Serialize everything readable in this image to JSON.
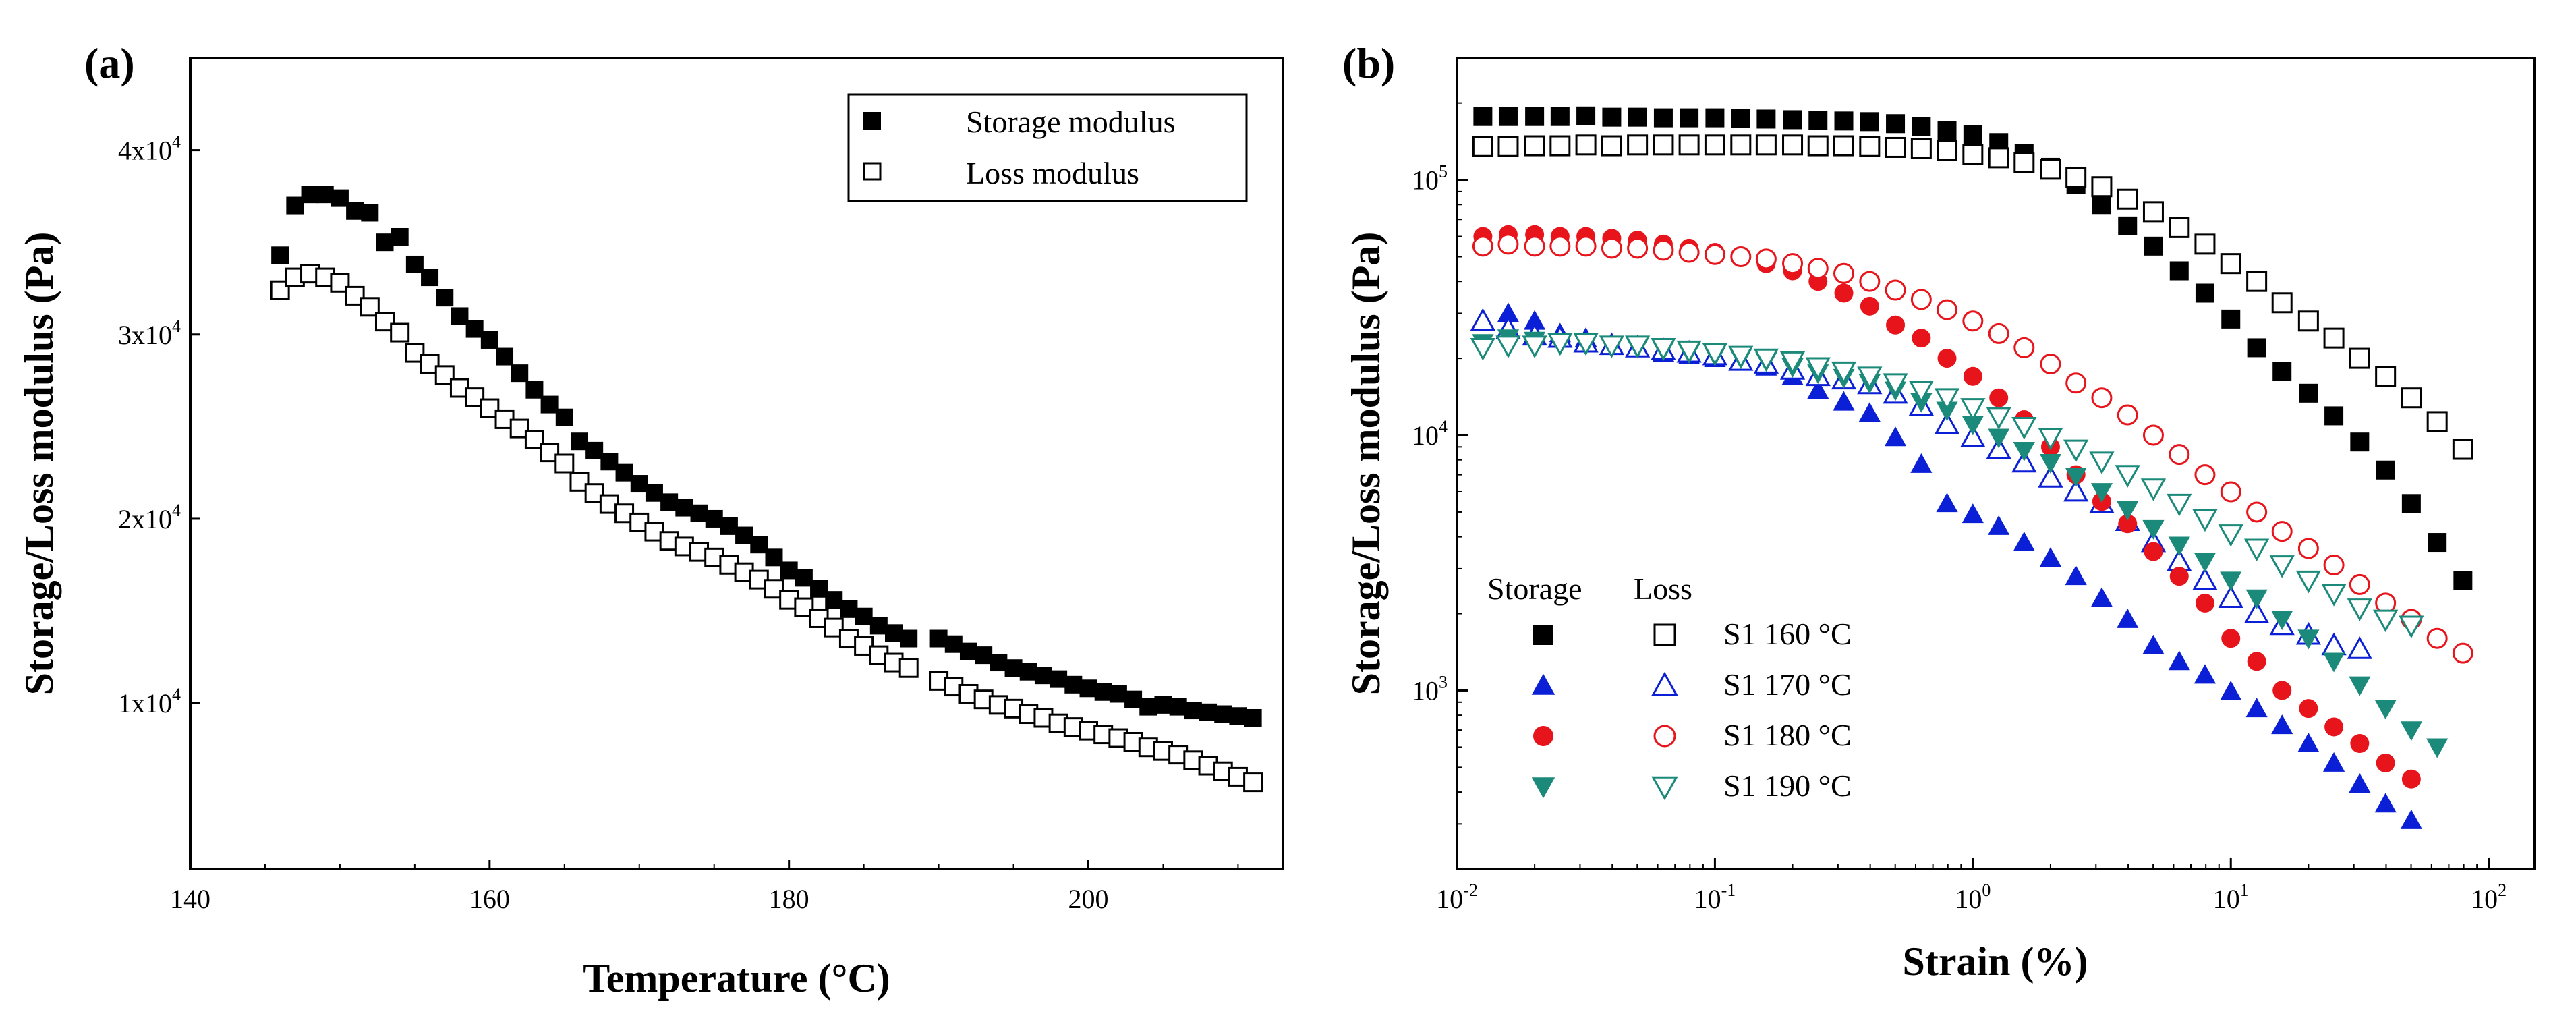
{
  "colors": {
    "black": "#000000",
    "blue": "#0a1fd6",
    "red": "#e8141b",
    "teal": "#1b8a7a"
  },
  "panels": {
    "a": {
      "label": "(a)"
    },
    "b": {
      "label": "(b)"
    }
  },
  "chart_data": [
    {
      "id": "a",
      "type": "scatter",
      "title": "",
      "xlabel": "Temperature (°C)",
      "ylabel": "Storage/Loss modulus (Pa)",
      "xlim": [
        140,
        213
      ],
      "ylim": [
        1000,
        45000
      ],
      "xticks": [
        140,
        160,
        180,
        200
      ],
      "xtick_labels": [
        "140",
        "160",
        "180",
        "200"
      ],
      "yticks": [
        10000,
        20000,
        30000,
        40000
      ],
      "ytick_labels": [
        {
          "base": "1x10",
          "exp": "4"
        },
        {
          "base": "2x10",
          "exp": "4"
        },
        {
          "base": "3x10",
          "exp": "4"
        },
        {
          "base": "4x10",
          "exp": "4"
        }
      ],
      "legend": {
        "position": "top-right",
        "entries": [
          "Storage modulus",
          "Loss modulus"
        ]
      },
      "series": [
        {
          "name": "Storage modulus",
          "marker": "square",
          "filled": true,
          "color": "#000000",
          "x": [
            146,
            147,
            148,
            149,
            150,
            151,
            152,
            153,
            154,
            155,
            156,
            157,
            158,
            159,
            160,
            161,
            162,
            163,
            164,
            165,
            166,
            167,
            168,
            169,
            170,
            171,
            172,
            173,
            174,
            175,
            176,
            177,
            178,
            179,
            180,
            181,
            182,
            183,
            184,
            185,
            186,
            187,
            188,
            190,
            191,
            192,
            193,
            194,
            195,
            196,
            197,
            198,
            199,
            200,
            201,
            202,
            203,
            204,
            205,
            206,
            207,
            208,
            209,
            210,
            211
          ],
          "y": [
            34300,
            37000,
            37600,
            37600,
            37400,
            36700,
            36600,
            35000,
            35300,
            33800,
            33100,
            32000,
            31000,
            30300,
            29700,
            28800,
            27900,
            27000,
            26200,
            25500,
            24200,
            23700,
            23100,
            22500,
            21900,
            21400,
            20900,
            20600,
            20300,
            20000,
            19600,
            19100,
            18600,
            17900,
            17200,
            16800,
            16200,
            15600,
            15100,
            14700,
            14200,
            13800,
            13500,
            13500,
            13200,
            12800,
            12600,
            12200,
            11900,
            11700,
            11500,
            11300,
            11000,
            10800,
            10600,
            10500,
            10200,
            9800,
            9900,
            9800,
            9600,
            9500,
            9400,
            9300,
            9200
          ]
        },
        {
          "name": "Loss modulus",
          "marker": "square",
          "filled": false,
          "color": "#000000",
          "x": [
            146,
            147,
            148,
            149,
            150,
            151,
            152,
            153,
            154,
            155,
            156,
            157,
            158,
            159,
            160,
            161,
            162,
            163,
            164,
            165,
            166,
            167,
            168,
            169,
            170,
            171,
            172,
            173,
            174,
            175,
            176,
            177,
            178,
            179,
            180,
            181,
            182,
            183,
            184,
            185,
            186,
            187,
            188,
            190,
            191,
            192,
            193,
            194,
            195,
            196,
            197,
            198,
            199,
            200,
            201,
            202,
            203,
            204,
            205,
            206,
            207,
            208,
            209,
            210,
            211
          ],
          "y": [
            32400,
            33100,
            33300,
            33100,
            32800,
            32100,
            31500,
            30700,
            30100,
            29000,
            28400,
            27800,
            27100,
            26600,
            26000,
            25400,
            24900,
            24300,
            23600,
            23000,
            22000,
            21400,
            20800,
            20300,
            19800,
            19300,
            18800,
            18500,
            18200,
            17900,
            17500,
            17100,
            16700,
            16200,
            15600,
            15200,
            14600,
            14100,
            13500,
            13100,
            12600,
            12200,
            11900,
            11200,
            10900,
            10500,
            10200,
            9900,
            9700,
            9400,
            9200,
            8900,
            8700,
            8500,
            8300,
            8100,
            7900,
            7600,
            7400,
            7200,
            6900,
            6600,
            6300,
            6000,
            5700
          ]
        }
      ]
    },
    {
      "id": "b",
      "type": "scatter",
      "title": "",
      "xlabel": "Strain (%)",
      "ylabel": "Storage/Loss modulus (Pa)",
      "xscale": "log",
      "yscale": "log",
      "xlim": [
        0.01,
        150
      ],
      "ylim": [
        200,
        300000
      ],
      "xticks": [
        0.01,
        0.1,
        1,
        10,
        100
      ],
      "xtick_labels": [
        {
          "base": "10",
          "exp": "-2"
        },
        {
          "base": "10",
          "exp": "-1"
        },
        {
          "base": "10",
          "exp": "0"
        },
        {
          "base": "10",
          "exp": "1"
        },
        {
          "base": "10",
          "exp": "2"
        }
      ],
      "yticks": [
        1000,
        10000,
        100000
      ],
      "ytick_labels": [
        {
          "base": "10",
          "exp": "3"
        },
        {
          "base": "10",
          "exp": "4"
        },
        {
          "base": "10",
          "exp": "5"
        }
      ],
      "legend": {
        "position": "bottom-left",
        "header_storage": "Storage",
        "header_loss": "Loss",
        "entries": [
          "S1 160 °C",
          "S1 170 °C",
          "S1 180 °C",
          "S1 190 °C"
        ]
      },
      "strain": [
        0.0126,
        0.0158,
        0.02,
        0.0251,
        0.0316,
        0.0398,
        0.0501,
        0.0631,
        0.0794,
        0.1,
        0.126,
        0.158,
        0.2,
        0.251,
        0.316,
        0.398,
        0.501,
        0.631,
        0.794,
        1.0,
        1.26,
        1.58,
        2.0,
        2.51,
        3.16,
        3.98,
        5.01,
        6.31,
        7.94,
        10.0,
        12.6,
        15.8,
        20.0,
        25.1,
        31.6,
        39.8,
        50.1,
        63.1,
        79.4,
        100
      ],
      "series": [
        {
          "name": "S1 160 °C storage",
          "marker": "square",
          "filled": true,
          "color": "#000000",
          "y": [
            177000,
            177000,
            177000,
            177000,
            178000,
            176000,
            176000,
            175000,
            175000,
            175000,
            174000,
            173000,
            172000,
            171000,
            170000,
            169000,
            166000,
            162000,
            156000,
            150000,
            140000,
            127000,
            112000,
            96000,
            80000,
            66000,
            55000,
            44000,
            36000,
            28500,
            22000,
            17800,
            14600,
            11900,
            9400,
            7300,
            5400,
            3800,
            2700
          ]
        },
        {
          "name": "S1 160 °C loss",
          "marker": "square",
          "filled": false,
          "color": "#000000",
          "y": [
            135000,
            135000,
            136000,
            136000,
            137000,
            136000,
            137000,
            137000,
            137000,
            137000,
            137000,
            137000,
            137000,
            136000,
            136000,
            135000,
            134000,
            133000,
            130000,
            126000,
            122000,
            117000,
            110000,
            102000,
            94000,
            84000,
            75000,
            65000,
            56000,
            47000,
            40000,
            33000,
            28000,
            24000,
            20000,
            17000,
            14000,
            11300,
            8800
          ]
        },
        {
          "name": "S1 170 °C storage",
          "marker": "triangle-up",
          "filled": true,
          "color": "#0a1fd6",
          "y": [
            28000,
            30000,
            28000,
            25000,
            24000,
            22500,
            22000,
            21000,
            20500,
            20000,
            19500,
            18500,
            17000,
            15000,
            13500,
            12200,
            9800,
            7700,
            5400,
            4900,
            4400,
            3800,
            3300,
            2800,
            2300,
            1900,
            1500,
            1300,
            1150,
            990,
            850,
            730,
            620,
            520,
            430,
            360,
            310
          ]
        },
        {
          "name": "S1 170 °C loss",
          "marker": "triangle-up",
          "filled": false,
          "color": "#0a1fd6",
          "y": [
            28000,
            26000,
            24500,
            24000,
            23000,
            22500,
            22000,
            21500,
            21000,
            20500,
            19500,
            19000,
            18000,
            17000,
            16500,
            15800,
            14500,
            13000,
            11000,
            9800,
            8800,
            7800,
            6800,
            6000,
            5400,
            4600,
            3800,
            3200,
            2700,
            2300,
            2000,
            1800,
            1650,
            1500,
            1450
          ]
        },
        {
          "name": "S1 180 °C storage",
          "marker": "circle",
          "filled": true,
          "color": "#e8141b",
          "y": [
            60000,
            61000,
            61000,
            60000,
            60000,
            59000,
            58000,
            56000,
            54000,
            52000,
            50000,
            47000,
            44000,
            40000,
            36000,
            32000,
            27000,
            24000,
            20000,
            17000,
            14000,
            11500,
            9000,
            7000,
            5500,
            4500,
            3500,
            2800,
            2200,
            1600,
            1300,
            1000,
            850,
            720,
            620,
            520,
            450
          ]
        },
        {
          "name": "S1 180 °C loss",
          "marker": "circle",
          "filled": false,
          "color": "#e8141b",
          "y": [
            55000,
            56000,
            55000,
            55000,
            55000,
            54000,
            54000,
            53000,
            52000,
            51000,
            50000,
            49000,
            47000,
            45000,
            43000,
            40000,
            37000,
            34000,
            31000,
            28000,
            25000,
            22000,
            19000,
            16000,
            14000,
            12000,
            10000,
            8400,
            7000,
            6000,
            5000,
            4200,
            3600,
            3100,
            2600,
            2200,
            1900,
            1600,
            1400
          ]
        },
        {
          "name": "S1 190 °C storage",
          "marker": "triangle-down",
          "filled": true,
          "color": "#1b8a7a",
          "y": [
            23000,
            24000,
            23500,
            23000,
            23000,
            22500,
            22000,
            21500,
            21000,
            20500,
            20000,
            19500,
            18500,
            17500,
            16800,
            16000,
            15000,
            13500,
            12500,
            11000,
            9800,
            8700,
            7800,
            6900,
            6000,
            5100,
            4300,
            3700,
            3200,
            2700,
            2300,
            1900,
            1600,
            1300,
            1050,
            850,
            700,
            600
          ]
        },
        {
          "name": "S1 190 °C loss",
          "marker": "triangle-down",
          "filled": false,
          "color": "#1b8a7a",
          "y": [
            22000,
            22500,
            22500,
            23000,
            23000,
            22500,
            22500,
            22000,
            21500,
            21000,
            20500,
            20000,
            19500,
            18500,
            17800,
            17000,
            16000,
            15000,
            14000,
            12800,
            11800,
            10800,
            9800,
            8800,
            7900,
            7000,
            6200,
            5400,
            4700,
            4100,
            3600,
            3100,
            2700,
            2400,
            2100,
            1900,
            1800
          ]
        }
      ],
      "legend_rows": [
        {
          "label": "S1 160 °C",
          "storage_marker": "square",
          "loss_marker": "square",
          "color": "#000000"
        },
        {
          "label": "S1 170 °C",
          "storage_marker": "triangle-up",
          "loss_marker": "triangle-up",
          "color": "#0a1fd6"
        },
        {
          "label": "S1 180 °C",
          "storage_marker": "circle",
          "loss_marker": "circle",
          "color": "#e8141b"
        },
        {
          "label": "S1 190 °C",
          "storage_marker": "triangle-down",
          "loss_marker": "triangle-down",
          "color": "#1b8a7a"
        }
      ]
    }
  ]
}
